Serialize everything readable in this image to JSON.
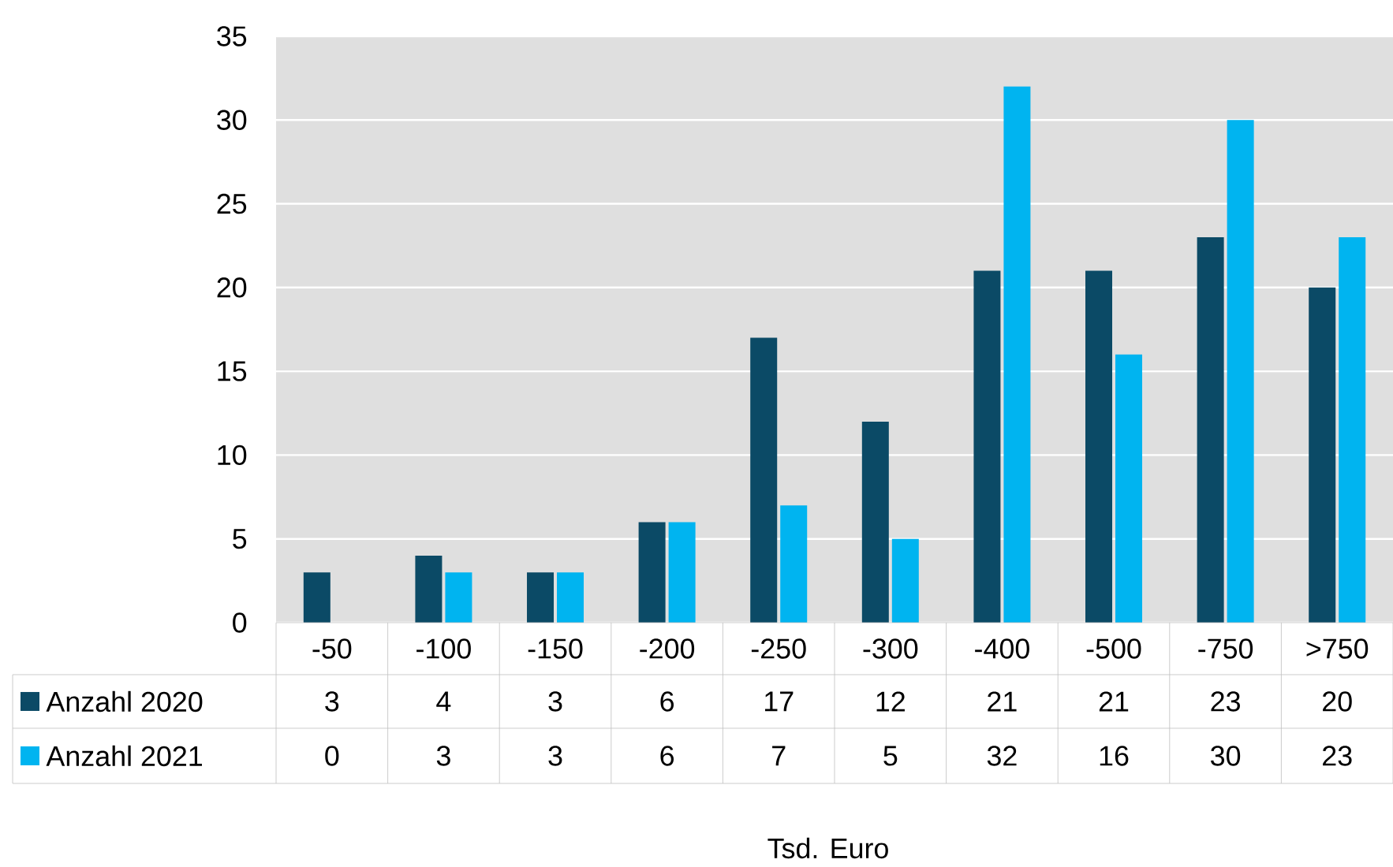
{
  "chart_data": {
    "type": "bar",
    "annotations": [
      "Tsd. Euro"
    ],
    "categories": [
      "-50",
      "-100",
      "-150",
      "-200",
      "-250",
      "-300",
      "-400",
      "-500",
      "-750",
      ">750"
    ],
    "series": [
      {
        "name": "Anzahl 2020",
        "color": "#0b4a66",
        "values": [
          3,
          4,
          3,
          6,
          17,
          12,
          21,
          21,
          23,
          20
        ]
      },
      {
        "name": "Anzahl 2021",
        "color": "#00b4f0",
        "values": [
          0,
          3,
          3,
          6,
          7,
          5,
          32,
          16,
          30,
          23
        ]
      }
    ],
    "ylim": [
      0,
      35
    ],
    "yticks": [
      0,
      5,
      10,
      15,
      20,
      25,
      30,
      35
    ],
    "grid": "y",
    "legend": "bottom left",
    "data_labels": true
  }
}
